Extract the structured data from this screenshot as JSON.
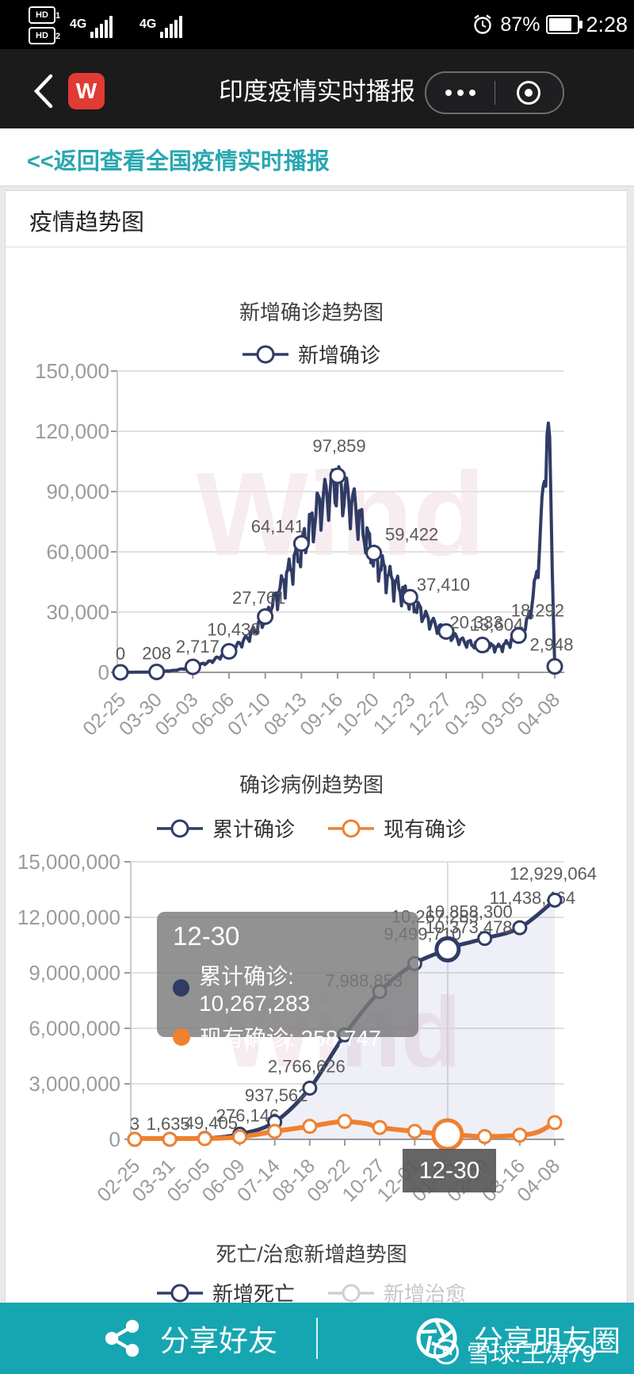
{
  "status_bar": {
    "badge1": "HD",
    "badge1_sub": "1",
    "badge2": "HD",
    "badge2_sub": "2",
    "network1": "4G",
    "network2": "4G",
    "battery_percent": "87%",
    "time": "2:28"
  },
  "nav": {
    "title": "印度疫情实时播报",
    "app_badge": "W"
  },
  "back_link": {
    "text": "<<返回查看全国疫情实时播报",
    "color": "#29a7b1"
  },
  "card_header": {
    "title": "疫情趋势图"
  },
  "colors": {
    "navy": "#303c66",
    "orange": "#ef8030",
    "teal_bar": "#16a6b2",
    "link_teal": "#29a7b1",
    "grid": "#e0e0e0",
    "axis_line": "#9a9a9a",
    "axis_text": "#9b9b9b",
    "point_label": "#5a5a5a",
    "brand_watermark": "#f3e3e9",
    "area_fill": "rgba(120,130,195,0.13)"
  },
  "brand_watermark": "Wind",
  "chart_data": [
    {
      "type": "line",
      "title": "新增确诊趋势图",
      "legend": [
        {
          "label": "新增确诊",
          "color": "#303c66",
          "active": true
        }
      ],
      "y_ticks": [
        "150,000",
        "120,000",
        "90,000",
        "60,000",
        "30,000",
        "0"
      ],
      "ymax": 150000,
      "x_labels": [
        "02-25",
        "03-30",
        "05-03",
        "06-06",
        "07-10",
        "08-13",
        "09-16",
        "10-20",
        "11-23",
        "12-27",
        "01-30",
        "03-05",
        "04-08"
      ],
      "series": [
        {
          "name": "新增确诊",
          "color": "#303c66",
          "width": 4,
          "smooth": false,
          "jitter": [
            [
              60,
              0.16
            ],
            [
              168,
              0.07
            ]
          ],
          "anchors": [
            [
              0,
              0
            ],
            [
              0.042,
              80
            ],
            [
              0.0833,
              208
            ],
            [
              0.125,
              1000
            ],
            [
              0.1667,
              2717
            ],
            [
              0.2083,
              5600
            ],
            [
              0.25,
              10438
            ],
            [
              0.2917,
              17500
            ],
            [
              0.3333,
              27761
            ],
            [
              0.375,
              46000
            ],
            [
              0.4167,
              64141
            ],
            [
              0.4583,
              86000
            ],
            [
              0.49,
              95000
            ],
            [
              0.5,
              97859
            ],
            [
              0.515,
              92000
            ],
            [
              0.5417,
              84000
            ],
            [
              0.5625,
              72000
            ],
            [
              0.5833,
              59422
            ],
            [
              0.625,
              47000
            ],
            [
              0.6667,
              37410
            ],
            [
              0.7083,
              27000
            ],
            [
              0.75,
              20333
            ],
            [
              0.7917,
              15500
            ],
            [
              0.8333,
              13604
            ],
            [
              0.875,
              12800
            ],
            [
              0.9167,
              18292
            ],
            [
              0.938,
              26000
            ],
            [
              0.958,
              48000
            ],
            [
              0.972,
              85000
            ],
            [
              0.983,
              126000
            ],
            [
              0.988,
              112000
            ],
            [
              0.994,
              60000
            ],
            [
              1,
              2948
            ]
          ],
          "markers": [
            {
              "t": 0,
              "v": 0,
              "label": "0",
              "dx": 0,
              "dy": -16
            },
            {
              "t": 0.0833,
              "v": 208,
              "label": "208",
              "dx": 0,
              "dy": -16
            },
            {
              "t": 0.1667,
              "v": 2717,
              "label": "2,717",
              "dx": 6,
              "dy": -18
            },
            {
              "t": 0.25,
              "v": 10438,
              "label": "10,438",
              "dx": 6,
              "dy": -20
            },
            {
              "t": 0.3333,
              "v": 27761,
              "label": "27,761",
              "dx": -8,
              "dy": -16
            },
            {
              "t": 0.4167,
              "v": 64141,
              "label": "64,141",
              "dx": -30,
              "dy": -14
            },
            {
              "t": 0.5,
              "v": 97859,
              "label": "97,859",
              "dx": 2,
              "dy": -30
            },
            {
              "t": 0.5833,
              "v": 59422,
              "label": "59,422",
              "dx": 48,
              "dy": 0
            },
            {
              "t": 0.6667,
              "v": 37410,
              "label": "37,410",
              "dx": 42,
              "dy": -8
            },
            {
              "t": 0.75,
              "v": 20333,
              "label": "20,333",
              "dx": 38,
              "dy": -4
            },
            {
              "t": 0.8333,
              "v": 13604,
              "label": "13,604",
              "dx": 18,
              "dy": -18
            },
            {
              "t": 0.9167,
              "v": 18292,
              "label": "18,292",
              "dx": 24,
              "dy": -24
            },
            {
              "t": 1,
              "v": 2948,
              "label": "2,948",
              "dx": -4,
              "dy": -20
            }
          ]
        }
      ]
    },
    {
      "type": "line",
      "title": "确诊病例趋势图",
      "legend": [
        {
          "label": "累计确诊",
          "color": "#303c66",
          "active": true
        },
        {
          "label": "现有确诊",
          "color": "#ef8030",
          "active": true
        }
      ],
      "y_ticks": [
        "15,000,000",
        "12,000,000",
        "9,000,000",
        "6,000,000",
        "3,000,000",
        "0"
      ],
      "ymax": 15000000,
      "x_labels": [
        "02-25",
        "03-31",
        "05-05",
        "06-09",
        "07-14",
        "08-18",
        "09-22",
        "10-27",
        "12-01",
        "01-05",
        "02-09",
        "03-16",
        "04-08"
      ],
      "hover_t": 0.745,
      "series": [
        {
          "name": "累计确诊",
          "color": "#303c66",
          "width": 5,
          "smooth": true,
          "area": true,
          "anchors": [
            [
              0,
              3
            ],
            [
              0.0833,
              1635
            ],
            [
              0.1667,
              49405
            ],
            [
              0.25,
              276146
            ],
            [
              0.3333,
              937562
            ],
            [
              0.4167,
              2766626
            ],
            [
              0.5,
              5646010
            ],
            [
              0.5833,
              7988853
            ],
            [
              0.6667,
              9499710
            ],
            [
              0.745,
              10267283
            ],
            [
              0.75,
              10373478
            ],
            [
              0.8333,
              10858300
            ],
            [
              0.9167,
              11438464
            ],
            [
              1,
              12929064
            ]
          ],
          "markers": [
            {
              "t": 0,
              "v": 3,
              "label": "3",
              "dx": 0,
              "dy": -12
            },
            {
              "t": 0.0833,
              "v": 1635,
              "label": "1,635",
              "dx": -2,
              "dy": -12
            },
            {
              "t": 0.1667,
              "v": 49405,
              "label": "49,405",
              "dx": 8,
              "dy": -12
            },
            {
              "t": 0.25,
              "v": 276146,
              "label": "276,146",
              "dx": 10,
              "dy": -16
            },
            {
              "t": 0.3333,
              "v": 937562,
              "label": "937,562",
              "dx": 2,
              "dy": -26
            },
            {
              "t": 0.4167,
              "v": 2766626,
              "label": "2,766,626",
              "dx": -4,
              "dy": -20
            },
            {
              "t": 0.5,
              "v": 5646010,
              "label": null,
              "dx": 0,
              "dy": 0
            },
            {
              "t": 0.5833,
              "v": 7988853,
              "label": "7,988,853",
              "dx": -20,
              "dy": -6
            },
            {
              "t": 0.6667,
              "v": 9499710,
              "label": "9,499,710",
              "dx": 10,
              "dy": -30
            },
            {
              "t": 0.75,
              "v": 10373478,
              "label": "10,373,478",
              "dx": 24,
              "dy": -18
            },
            {
              "t": 0.8333,
              "v": 10858300,
              "label": "10,858,300",
              "dx": -20,
              "dy": -26
            },
            {
              "t": 0.9167,
              "v": 11438464,
              "label": "11,438,464",
              "dx": 16,
              "dy": -30
            },
            {
              "t": 1,
              "v": 12929064,
              "label": "12,929,064",
              "dx": -2,
              "dy": -26
            },
            {
              "t": 0.745,
              "v": 10267283,
              "label": "10,267,283",
              "dx": -16,
              "dy": -34,
              "big": true
            }
          ]
        },
        {
          "name": "现有确诊",
          "color": "#ef8030",
          "width": 6,
          "smooth": true,
          "area": false,
          "anchors": [
            [
              0,
              3
            ],
            [
              0.0833,
              1500
            ],
            [
              0.1667,
              35000
            ],
            [
              0.25,
              130000
            ],
            [
              0.3333,
              430000
            ],
            [
              0.4167,
              700000
            ],
            [
              0.47,
              900000
            ],
            [
              0.5,
              968000
            ],
            [
              0.55,
              850000
            ],
            [
              0.5833,
              640000
            ],
            [
              0.6667,
              430000
            ],
            [
              0.745,
              258747
            ],
            [
              0.78,
              215000
            ],
            [
              0.8333,
              150000
            ],
            [
              0.9167,
              225000
            ],
            [
              0.96,
              400000
            ],
            [
              1,
              905000
            ]
          ],
          "markers": [
            {
              "t": 0,
              "v": 3
            },
            {
              "t": 0.0833,
              "v": 1500
            },
            {
              "t": 0.1667,
              "v": 35000
            },
            {
              "t": 0.25,
              "v": 130000
            },
            {
              "t": 0.3333,
              "v": 430000
            },
            {
              "t": 0.4167,
              "v": 700000
            },
            {
              "t": 0.5,
              "v": 968000
            },
            {
              "t": 0.5833,
              "v": 640000
            },
            {
              "t": 0.6667,
              "v": 430000
            },
            {
              "t": 0.75,
              "v": 248000
            },
            {
              "t": 0.8333,
              "v": 150000
            },
            {
              "t": 0.9167,
              "v": 225000
            },
            {
              "t": 1,
              "v": 905000
            },
            {
              "t": 0.745,
              "v": 258747,
              "big": true
            }
          ]
        }
      ],
      "tooltip": {
        "date": "12-30",
        "rows": [
          {
            "label": "累计确诊",
            "value": "10,267,283",
            "text": "累计确诊: 10,267,283",
            "color": "#303c66"
          },
          {
            "label": "现有确诊",
            "value": "258,747",
            "text": "现有确诊: 258,747",
            "color": "#ef8030"
          }
        ]
      },
      "axis_tag": "12-30"
    },
    {
      "type": "line",
      "title": "死亡/治愈新增趋势图",
      "legend": [
        {
          "label": "新增死亡",
          "color": "#303c66",
          "active": true
        },
        {
          "label": "新增治愈",
          "color": "#cfcfcf",
          "active": false
        }
      ]
    }
  ],
  "share_bar": {
    "left_label": "分享好友",
    "right_label": "分享朋友圈"
  },
  "user_watermark": {
    "text": "雪球:王涛79"
  }
}
